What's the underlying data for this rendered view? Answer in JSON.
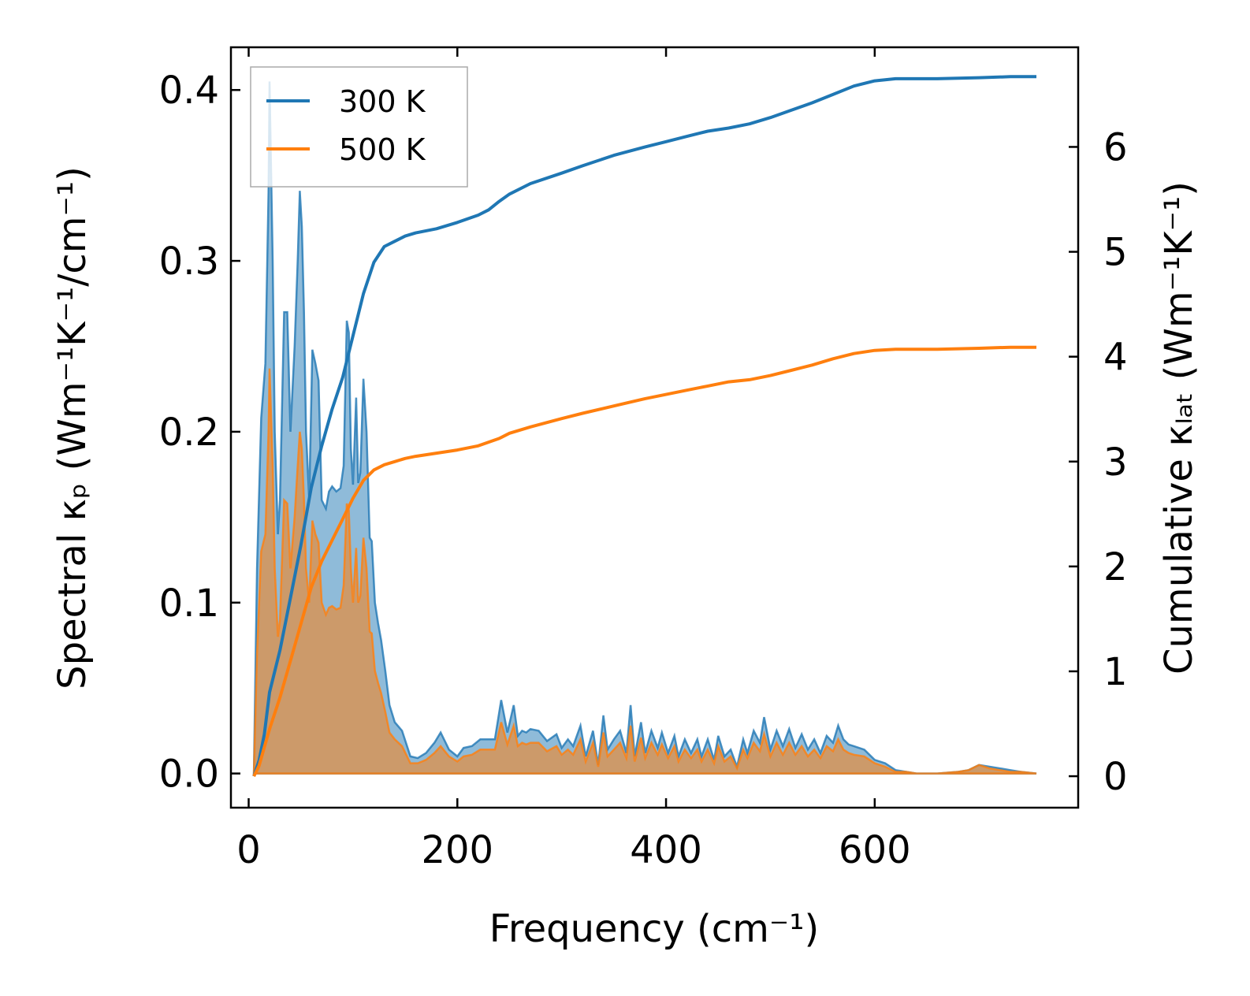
{
  "chart_data": {
    "type": "line",
    "xlabel": "Frequency (cm⁻¹)",
    "ylabel_left": "Spectral κₚ (Wm⁻¹K⁻¹/cm⁻¹)",
    "ylabel_right": "Cumulative κₗₐₜ (Wm⁻¹K⁻¹)",
    "xlim": [
      -17,
      795
    ],
    "ylim_left": [
      -0.02,
      0.425
    ],
    "ylim_right": [
      -0.3,
      6.95
    ],
    "x_ticks": [
      0,
      200,
      400,
      600
    ],
    "x_tick_labels": [
      "0",
      "200",
      "400",
      "600"
    ],
    "y_left_ticks": [
      0.0,
      0.1,
      0.2,
      0.3,
      0.4
    ],
    "y_left_tick_labels": [
      "0.0",
      "0.1",
      "0.2",
      "0.3",
      "0.4"
    ],
    "y_right_ticks": [
      0,
      1,
      2,
      3,
      4,
      5,
      6
    ],
    "y_right_tick_labels": [
      "0",
      "1",
      "2",
      "3",
      "4",
      "5",
      "6"
    ],
    "legend": {
      "position": "upper-left",
      "entries": [
        "300 K",
        "500 K"
      ]
    },
    "series": [
      {
        "name": "300 K",
        "color": "#1f77b4",
        "spectral": {
          "x": [
            5,
            8,
            12,
            16,
            19,
            20,
            23,
            25,
            28,
            30,
            34,
            37,
            40,
            44,
            47,
            49,
            51,
            53,
            55,
            58,
            61,
            64,
            67,
            70,
            74,
            77,
            80,
            84,
            88,
            91,
            94,
            96,
            98,
            100,
            103,
            105,
            107,
            110,
            113,
            116,
            118,
            121,
            124,
            127,
            131,
            135,
            140,
            147,
            155,
            162,
            170,
            178,
            184,
            192,
            200,
            206,
            214,
            222,
            230,
            236,
            242,
            248,
            254,
            258,
            262,
            266,
            270,
            278,
            286,
            295,
            300,
            306,
            311,
            318,
            323,
            330,
            335,
            340,
            344,
            350,
            356,
            362,
            366,
            370,
            376,
            380,
            386,
            392,
            396,
            402,
            408,
            412,
            418,
            424,
            430,
            434,
            440,
            446,
            450,
            456,
            462,
            468,
            474,
            478,
            484,
            490,
            494,
            500,
            506,
            512,
            518,
            524,
            530,
            536,
            542,
            548,
            554,
            560,
            565,
            570,
            575,
            580,
            590,
            600,
            610,
            620,
            630,
            640,
            660,
            680,
            690,
            700,
            710,
            720,
            730,
            740,
            755
          ],
          "y": [
            0.0,
            0.12,
            0.208,
            0.24,
            0.34,
            0.405,
            0.3,
            0.2,
            0.14,
            0.16,
            0.27,
            0.27,
            0.2,
            0.25,
            0.3,
            0.341,
            0.32,
            0.27,
            0.2,
            0.16,
            0.248,
            0.24,
            0.23,
            0.16,
            0.155,
            0.165,
            0.168,
            0.165,
            0.167,
            0.18,
            0.265,
            0.258,
            0.19,
            0.169,
            0.22,
            0.17,
            0.176,
            0.231,
            0.2,
            0.138,
            0.136,
            0.1,
            0.088,
            0.078,
            0.06,
            0.04,
            0.03,
            0.025,
            0.01,
            0.009,
            0.012,
            0.018,
            0.024,
            0.014,
            0.01,
            0.015,
            0.016,
            0.02,
            0.02,
            0.02,
            0.043,
            0.024,
            0.04,
            0.022,
            0.025,
            0.024,
            0.026,
            0.025,
            0.019,
            0.023,
            0.015,
            0.02,
            0.016,
            0.028,
            0.01,
            0.025,
            0.005,
            0.034,
            0.014,
            0.02,
            0.025,
            0.012,
            0.04,
            0.01,
            0.03,
            0.012,
            0.025,
            0.015,
            0.024,
            0.012,
            0.022,
            0.01,
            0.02,
            0.012,
            0.02,
            0.01,
            0.02,
            0.008,
            0.022,
            0.01,
            0.014,
            0.004,
            0.02,
            0.012,
            0.025,
            0.018,
            0.033,
            0.014,
            0.025,
            0.016,
            0.026,
            0.015,
            0.023,
            0.014,
            0.02,
            0.012,
            0.022,
            0.018,
            0.028,
            0.02,
            0.017,
            0.016,
            0.014,
            0.008,
            0.006,
            0.002,
            0.001,
            0.0,
            0.0,
            0.001,
            0.002,
            0.005,
            0.004,
            0.003,
            0.002,
            0.001,
            0.0
          ]
        },
        "cumulative": {
          "x": [
            5,
            10,
            15,
            20,
            30,
            40,
            50,
            60,
            70,
            80,
            90,
            100,
            110,
            120,
            130,
            140,
            150,
            160,
            180,
            200,
            220,
            230,
            240,
            250,
            270,
            300,
            320,
            350,
            380,
            400,
            420,
            440,
            460,
            480,
            500,
            520,
            540,
            560,
            580,
            600,
            620,
            660,
            700,
            730,
            755
          ],
          "y": [
            0.0,
            0.15,
            0.4,
            0.8,
            1.2,
            1.7,
            2.2,
            2.75,
            3.15,
            3.5,
            3.8,
            4.2,
            4.6,
            4.9,
            5.05,
            5.1,
            5.15,
            5.18,
            5.22,
            5.28,
            5.35,
            5.4,
            5.48,
            5.55,
            5.65,
            5.75,
            5.82,
            5.92,
            6.0,
            6.05,
            6.1,
            6.15,
            6.18,
            6.22,
            6.28,
            6.35,
            6.42,
            6.5,
            6.58,
            6.63,
            6.65,
            6.65,
            6.66,
            6.67,
            6.67
          ]
        }
      },
      {
        "name": "500 K",
        "color": "#ff7f0e",
        "spectral": {
          "x": [
            5,
            8,
            12,
            16,
            19,
            20,
            23,
            25,
            28,
            30,
            34,
            37,
            40,
            44,
            47,
            49,
            51,
            53,
            55,
            58,
            61,
            64,
            67,
            70,
            74,
            77,
            80,
            84,
            88,
            91,
            94,
            96,
            98,
            100,
            103,
            105,
            107,
            110,
            113,
            116,
            118,
            121,
            124,
            127,
            131,
            135,
            140,
            147,
            155,
            162,
            170,
            178,
            184,
            192,
            200,
            206,
            214,
            222,
            230,
            236,
            242,
            248,
            254,
            258,
            262,
            266,
            270,
            278,
            286,
            295,
            300,
            306,
            311,
            318,
            323,
            330,
            335,
            340,
            344,
            350,
            356,
            362,
            366,
            370,
            376,
            380,
            386,
            392,
            396,
            402,
            408,
            412,
            418,
            424,
            430,
            434,
            440,
            446,
            450,
            456,
            462,
            468,
            474,
            478,
            484,
            490,
            494,
            500,
            506,
            512,
            518,
            524,
            530,
            536,
            542,
            548,
            554,
            560,
            565,
            570,
            575,
            580,
            590,
            600,
            610,
            620,
            630,
            640,
            660,
            680,
            690,
            700,
            710,
            720,
            730,
            740,
            755
          ],
          "y": [
            0.0,
            0.07,
            0.13,
            0.14,
            0.2,
            0.237,
            0.18,
            0.12,
            0.08,
            0.09,
            0.16,
            0.158,
            0.12,
            0.15,
            0.18,
            0.2,
            0.19,
            0.16,
            0.12,
            0.1,
            0.148,
            0.14,
            0.135,
            0.1,
            0.093,
            0.097,
            0.098,
            0.096,
            0.097,
            0.11,
            0.158,
            0.154,
            0.12,
            0.1,
            0.132,
            0.1,
            0.104,
            0.138,
            0.12,
            0.083,
            0.082,
            0.06,
            0.053,
            0.047,
            0.036,
            0.024,
            0.02,
            0.016,
            0.006,
            0.006,
            0.008,
            0.012,
            0.016,
            0.01,
            0.007,
            0.01,
            0.011,
            0.014,
            0.014,
            0.014,
            0.03,
            0.017,
            0.028,
            0.016,
            0.018,
            0.017,
            0.018,
            0.018,
            0.013,
            0.016,
            0.011,
            0.014,
            0.011,
            0.02,
            0.007,
            0.018,
            0.004,
            0.024,
            0.01,
            0.014,
            0.018,
            0.009,
            0.028,
            0.007,
            0.021,
            0.009,
            0.018,
            0.011,
            0.017,
            0.009,
            0.016,
            0.007,
            0.014,
            0.009,
            0.014,
            0.007,
            0.014,
            0.006,
            0.016,
            0.007,
            0.01,
            0.003,
            0.014,
            0.009,
            0.018,
            0.013,
            0.023,
            0.01,
            0.018,
            0.011,
            0.018,
            0.011,
            0.016,
            0.01,
            0.014,
            0.009,
            0.016,
            0.013,
            0.02,
            0.014,
            0.012,
            0.011,
            0.01,
            0.006,
            0.004,
            0.001,
            0.001,
            0.0,
            0.0,
            0.001,
            0.002,
            0.005,
            0.003,
            0.002,
            0.001,
            0.001,
            0.0
          ]
        },
        "cumulative": {
          "x": [
            5,
            10,
            20,
            30,
            40,
            50,
            60,
            70,
            80,
            90,
            100,
            110,
            120,
            130,
            140,
            150,
            160,
            180,
            200,
            220,
            240,
            250,
            270,
            300,
            320,
            350,
            380,
            400,
            420,
            440,
            460,
            480,
            500,
            520,
            540,
            560,
            580,
            600,
            620,
            660,
            700,
            730,
            755
          ],
          "y": [
            0.0,
            0.1,
            0.45,
            0.75,
            1.1,
            1.45,
            1.8,
            2.05,
            2.25,
            2.45,
            2.65,
            2.82,
            2.92,
            2.97,
            3.0,
            3.03,
            3.05,
            3.08,
            3.11,
            3.15,
            3.22,
            3.27,
            3.33,
            3.41,
            3.46,
            3.53,
            3.6,
            3.64,
            3.68,
            3.72,
            3.76,
            3.78,
            3.82,
            3.87,
            3.92,
            3.98,
            4.03,
            4.06,
            4.07,
            4.07,
            4.08,
            4.09,
            4.09
          ]
        }
      }
    ]
  }
}
